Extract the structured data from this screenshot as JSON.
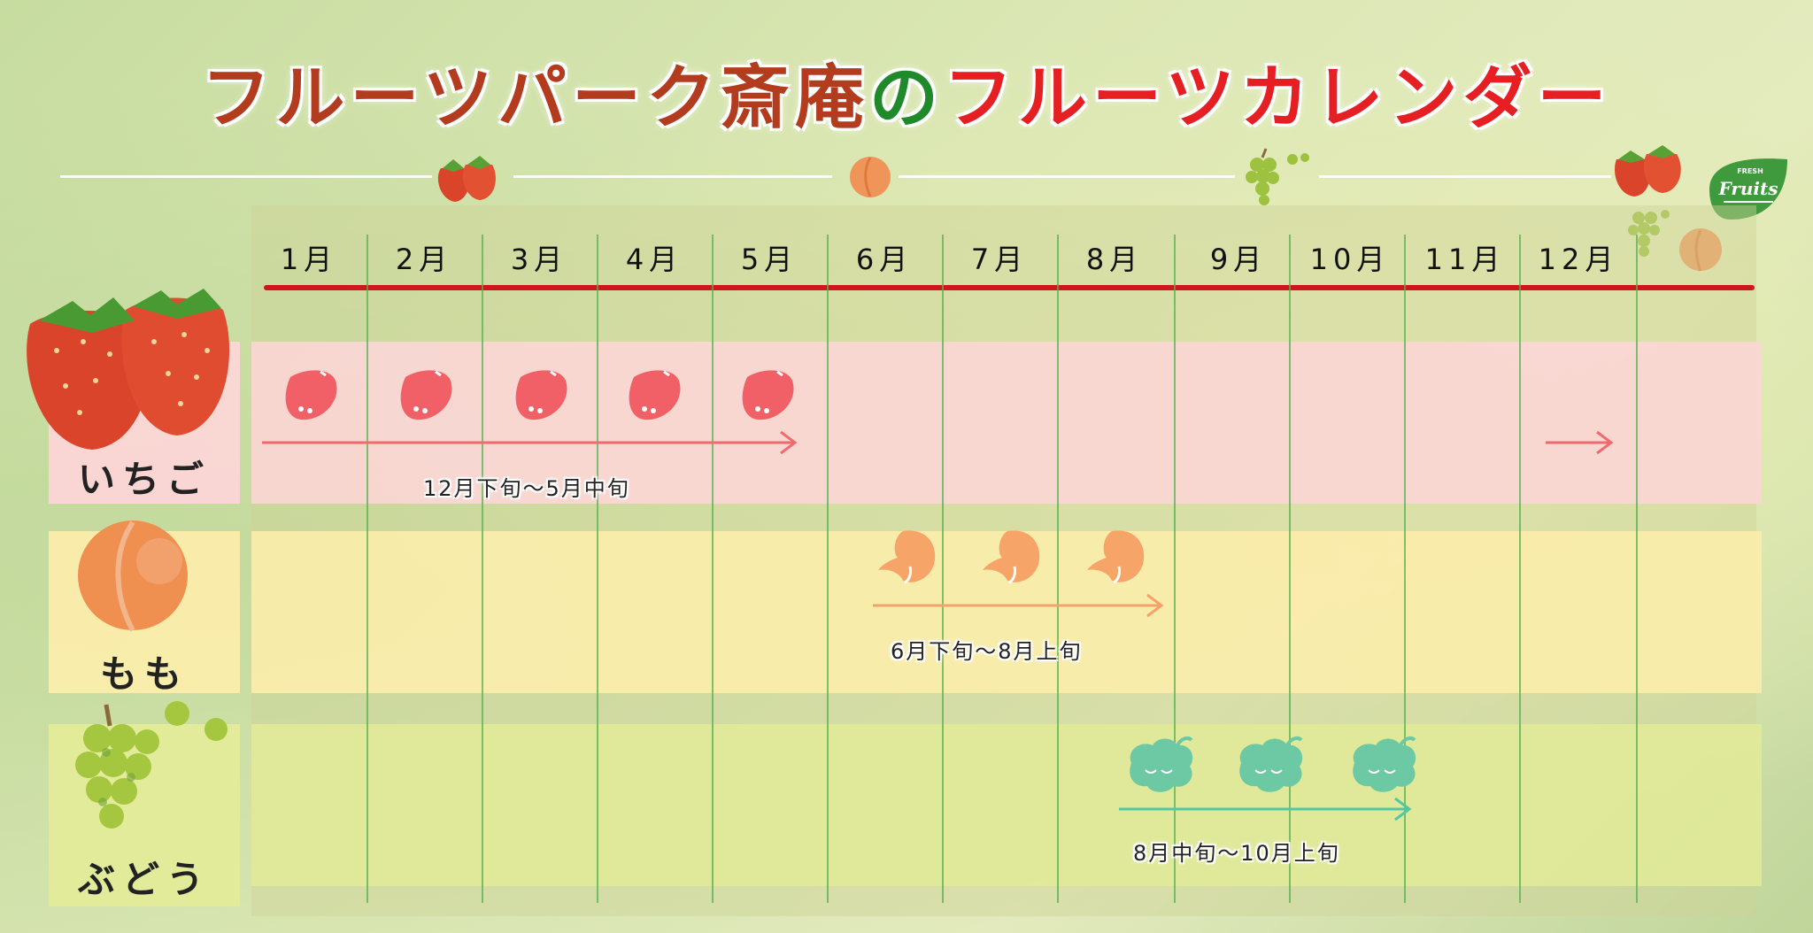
{
  "title": {
    "part1": "フルーツパーク斎庵",
    "part2": "の",
    "part3": "フルーツカレンダー"
  },
  "badge": {
    "small": "FRESH",
    "big": "Fruits"
  },
  "months": [
    "1月",
    "2月",
    "3月",
    "4月",
    "5月",
    "6月",
    "7月",
    "8月",
    "9月",
    "10月",
    "11月",
    "12月"
  ],
  "rows": [
    {
      "name": "いちご",
      "period": "12月下旬～5月中旬",
      "color": "#f2a0a6",
      "icon": "strawberry-icon"
    },
    {
      "name": "もも",
      "period": "6月下旬～8月上旬",
      "color": "#f6b070",
      "icon": "peach-icon"
    },
    {
      "name": "ぶどう",
      "period": "8月中旬～10月上旬",
      "color": "#6fcfa7",
      "icon": "grape-icon"
    }
  ],
  "colors": {
    "title_brown": "#b33c1e",
    "title_green": "#1e8a2a",
    "title_red": "#e51f22",
    "strawberry_band": "#f9d7d6",
    "peach_band": "#fbedb0",
    "grape_band": "#e4ec9f",
    "month_line": "#d0161c"
  }
}
